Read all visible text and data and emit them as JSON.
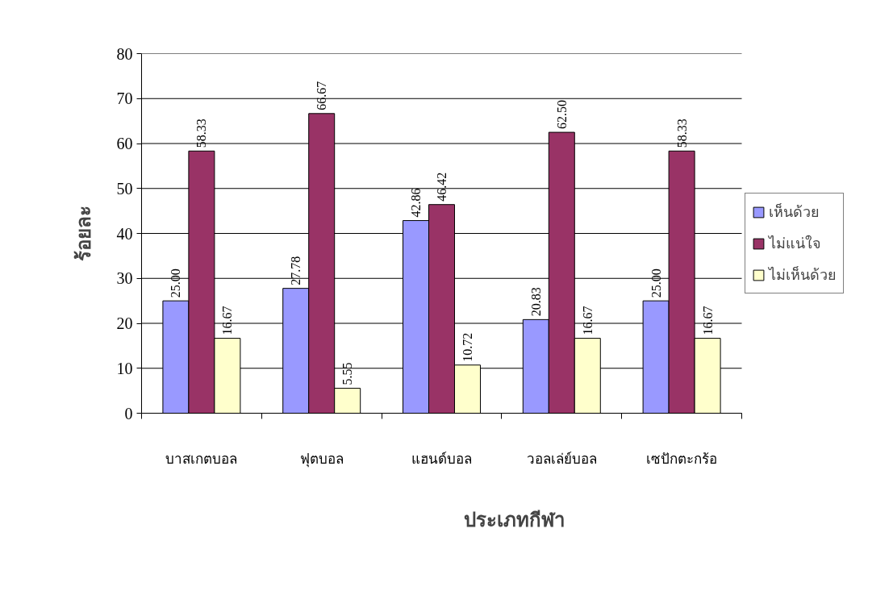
{
  "chart_data": {
    "type": "bar",
    "xlabel": "ประเภทกีฬา",
    "ylabel": "ร้อยละ",
    "categories": [
      "บาสเกตบอล",
      "ฟุตบอล",
      "แฮนด์บอล",
      "วอลเล่ย์บอล",
      "เซปักตะกร้อ"
    ],
    "series": [
      {
        "name": "เห็นด้วย",
        "color": "#9999ff",
        "values": [
          25.0,
          27.78,
          42.86,
          20.83,
          25.0
        ],
        "value_labels": [
          "25.00",
          "27.78",
          "42.86",
          "20.83",
          "25.00"
        ]
      },
      {
        "name": "ไม่แน่ใจ",
        "color": "#993366",
        "values": [
          58.33,
          66.67,
          46.42,
          62.5,
          58.33
        ],
        "value_labels": [
          "58.33",
          "66.67",
          "46.42",
          "62.50",
          "58.33"
        ]
      },
      {
        "name": "ไม่เห็นด้วย",
        "color": "#ffffcc",
        "values": [
          16.67,
          5.55,
          10.72,
          16.67,
          16.67
        ],
        "value_labels": [
          "16.67",
          "5.55",
          "10.72",
          "16.67",
          "16.67"
        ]
      }
    ],
    "ylim": [
      0,
      80
    ],
    "yticks": [
      0,
      10,
      20,
      30,
      40,
      50,
      60,
      70,
      80
    ],
    "grid": "y",
    "legend": "right"
  }
}
